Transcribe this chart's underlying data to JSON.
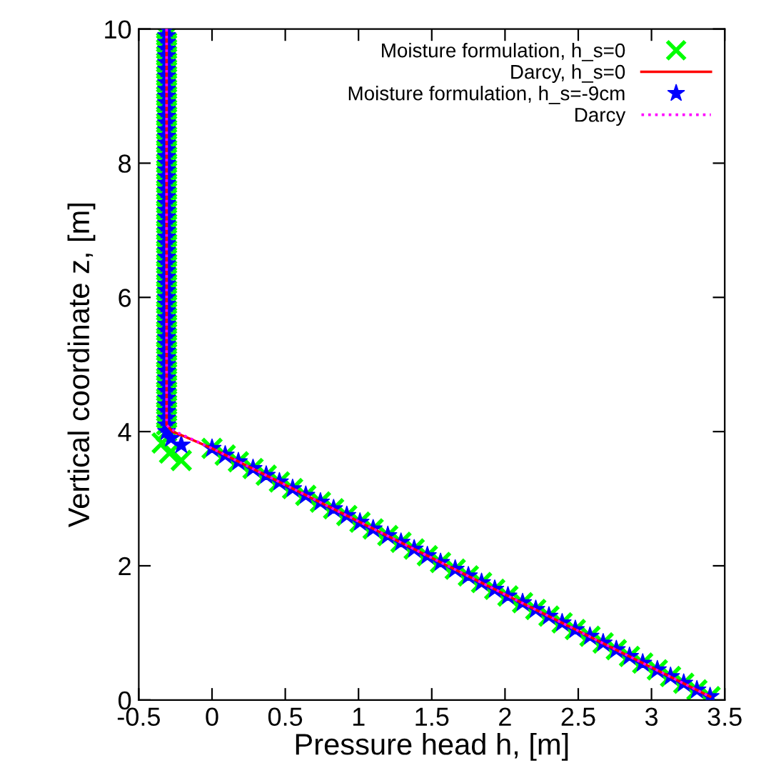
{
  "chart_data": {
    "type": "scatter",
    "xlabel": "Pressure head h, [m]",
    "ylabel": "Vertical coordinate z, [m]",
    "xlim": [
      -0.5,
      3.5
    ],
    "ylim": [
      0,
      10
    ],
    "xticks": [
      -0.5,
      0,
      0.5,
      1,
      1.5,
      2,
      2.5,
      3,
      3.5
    ],
    "yticks": [
      0,
      2,
      4,
      6,
      8,
      10
    ],
    "grid": false,
    "legend": "top right",
    "series": [
      {
        "name": "Moisture formulation, h_s=0",
        "marker": "cross",
        "color": "#00ff00",
        "x": [
          -0.31,
          -0.31,
          -0.31,
          -0.31,
          -0.31,
          -0.31,
          -0.31,
          -0.31,
          -0.31,
          -0.31,
          -0.31,
          -0.31,
          -0.31,
          -0.31,
          -0.31,
          -0.31,
          -0.31,
          -0.31,
          -0.31,
          -0.31,
          -0.31,
          -0.31,
          -0.31,
          -0.31,
          -0.31,
          -0.31,
          -0.31,
          -0.31,
          -0.31,
          -0.31,
          -0.31,
          -0.31,
          -0.31,
          -0.31,
          -0.31,
          -0.31,
          -0.31,
          -0.31,
          -0.31,
          -0.31,
          -0.31,
          -0.31,
          -0.31,
          -0.31,
          -0.31,
          -0.31,
          -0.31,
          -0.31,
          -0.31,
          -0.31,
          -0.31,
          -0.31,
          -0.31,
          -0.31,
          -0.31,
          -0.31,
          -0.31,
          -0.31,
          -0.31,
          -0.31,
          -0.31,
          -0.34,
          -0.29,
          -0.21,
          0.0,
          0.09,
          0.18,
          0.28,
          0.37,
          0.46,
          0.55,
          0.64,
          0.74,
          0.83,
          0.92,
          1.01,
          1.1,
          1.2,
          1.29,
          1.38,
          1.47,
          1.56,
          1.66,
          1.75,
          1.84,
          1.93,
          2.02,
          2.12,
          2.21,
          2.3,
          2.39,
          2.48,
          2.58,
          2.67,
          2.76,
          2.85,
          2.94,
          3.04,
          3.13,
          3.22,
          3.31,
          3.4
        ],
        "values": [
          10.0,
          9.9,
          9.8,
          9.7,
          9.6,
          9.5,
          9.4,
          9.3,
          9.2,
          9.1,
          9.0,
          8.9,
          8.8,
          8.7,
          8.6,
          8.5,
          8.4,
          8.3,
          8.2,
          8.1,
          8.0,
          7.9,
          7.8,
          7.7,
          7.6,
          7.5,
          7.4,
          7.3,
          7.2,
          7.1,
          7.0,
          6.9,
          6.8,
          6.7,
          6.6,
          6.5,
          6.4,
          6.3,
          6.2,
          6.1,
          6.0,
          5.9,
          5.8,
          5.7,
          5.6,
          5.5,
          5.4,
          5.3,
          5.2,
          5.1,
          5.0,
          4.9,
          4.8,
          4.7,
          4.6,
          4.5,
          4.4,
          4.3,
          4.2,
          4.1,
          4.0,
          3.83,
          3.68,
          3.57,
          3.75,
          3.65,
          3.55,
          3.45,
          3.35,
          3.25,
          3.15,
          3.05,
          2.95,
          2.85,
          2.75,
          2.65,
          2.55,
          2.45,
          2.35,
          2.25,
          2.15,
          2.05,
          1.95,
          1.85,
          1.75,
          1.65,
          1.55,
          1.45,
          1.35,
          1.25,
          1.15,
          1.05,
          0.95,
          0.85,
          0.75,
          0.65,
          0.55,
          0.45,
          0.35,
          0.25,
          0.15,
          0.05
        ]
      },
      {
        "name": "Darcy, h_s=0",
        "type": "line",
        "line_style": "solid",
        "color": "#ff0000",
        "x": [
          -0.31,
          -0.31,
          -0.27,
          -0.18,
          0.0,
          3.4
        ],
        "values": [
          10.0,
          4.1,
          4.0,
          3.92,
          3.75,
          0.05
        ]
      },
      {
        "name": "Moisture formulation, h_s=-9cm",
        "marker": "star",
        "color": "#0000ff",
        "x": [
          -0.31,
          -0.31,
          -0.31,
          -0.31,
          -0.31,
          -0.31,
          -0.31,
          -0.31,
          -0.31,
          -0.31,
          -0.31,
          -0.31,
          -0.31,
          -0.31,
          -0.31,
          -0.31,
          -0.31,
          -0.31,
          -0.31,
          -0.31,
          -0.31,
          -0.31,
          -0.31,
          -0.31,
          -0.31,
          -0.31,
          -0.31,
          -0.31,
          -0.31,
          -0.31,
          -0.31,
          -0.31,
          -0.31,
          -0.31,
          -0.31,
          -0.31,
          -0.31,
          -0.31,
          -0.31,
          -0.31,
          -0.31,
          -0.31,
          -0.31,
          -0.31,
          -0.31,
          -0.31,
          -0.31,
          -0.31,
          -0.31,
          -0.31,
          -0.31,
          -0.31,
          -0.31,
          -0.31,
          -0.31,
          -0.31,
          -0.31,
          -0.31,
          -0.31,
          -0.31,
          -0.31,
          -0.28,
          -0.21,
          0.0,
          0.09,
          0.18,
          0.28,
          0.37,
          0.46,
          0.55,
          0.64,
          0.74,
          0.83,
          0.92,
          1.01,
          1.1,
          1.2,
          1.29,
          1.38,
          1.47,
          1.56,
          1.66,
          1.75,
          1.84,
          1.93,
          2.02,
          2.12,
          2.21,
          2.3,
          2.39,
          2.48,
          2.58,
          2.67,
          2.76,
          2.85,
          2.94,
          3.04,
          3.13,
          3.22,
          3.31,
          3.4
        ],
        "values": [
          10.0,
          9.9,
          9.8,
          9.7,
          9.6,
          9.5,
          9.4,
          9.3,
          9.2,
          9.1,
          9.0,
          8.9,
          8.8,
          8.7,
          8.6,
          8.5,
          8.4,
          8.3,
          8.2,
          8.1,
          8.0,
          7.9,
          7.8,
          7.7,
          7.6,
          7.5,
          7.4,
          7.3,
          7.2,
          7.1,
          7.0,
          6.9,
          6.8,
          6.7,
          6.6,
          6.5,
          6.4,
          6.3,
          6.2,
          6.1,
          6.0,
          5.9,
          5.8,
          5.7,
          5.6,
          5.5,
          5.4,
          5.3,
          5.2,
          5.1,
          5.0,
          4.9,
          4.8,
          4.7,
          4.6,
          4.5,
          4.4,
          4.3,
          4.2,
          4.1,
          4.0,
          3.9,
          3.8,
          3.75,
          3.65,
          3.55,
          3.45,
          3.35,
          3.25,
          3.15,
          3.05,
          2.95,
          2.85,
          2.75,
          2.65,
          2.55,
          2.45,
          2.35,
          2.25,
          2.15,
          2.05,
          1.95,
          1.85,
          1.75,
          1.65,
          1.55,
          1.45,
          1.35,
          1.25,
          1.15,
          1.05,
          0.95,
          0.85,
          0.75,
          0.65,
          0.55,
          0.45,
          0.35,
          0.25,
          0.15,
          0.05
        ]
      },
      {
        "name": "Darcy",
        "type": "line",
        "line_style": "dotted",
        "color": "#ff00ff",
        "x": [
          -0.31,
          -0.31,
          -0.29,
          -0.22,
          0.0,
          3.4
        ],
        "values": [
          10.0,
          4.1,
          4.05,
          3.97,
          3.75,
          0.05
        ]
      }
    ]
  }
}
